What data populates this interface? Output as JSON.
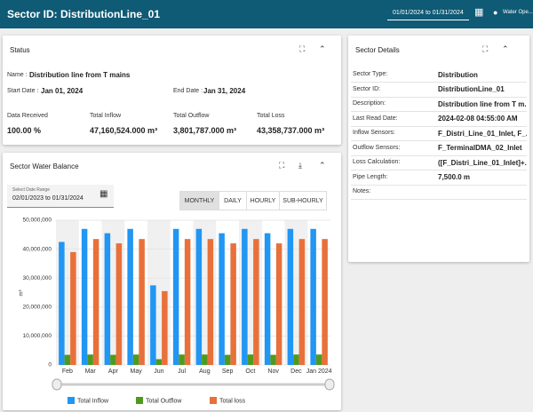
{
  "header": {
    "title": "Sector ID: DistributionLine_01",
    "date_range": "01/01/2024 to 01/31/2024",
    "user": "Water Ope..."
  },
  "status": {
    "title": "Status",
    "name_label": "Name :",
    "name": "Distribution line from T mains",
    "start_label": "Start Date :",
    "start": "Jan 01, 2024",
    "end_label": "End Date :",
    "end": "Jan 31, 2024",
    "metrics": [
      {
        "label": "Data Received",
        "value": "100.00 %"
      },
      {
        "label": "Total Inflow",
        "value": "47,160,524.000 m³"
      },
      {
        "label": "Total Outflow",
        "value": "3,801,787.000 m³"
      },
      {
        "label": "Total Loss",
        "value": "43,358,737.000 m³"
      }
    ]
  },
  "details": {
    "title": "Sector Details",
    "rows": [
      [
        "Sector Type:",
        "Distribution"
      ],
      [
        "Sector ID:",
        "DistributionLine_01"
      ],
      [
        "Description:",
        "Distribution line from T m..."
      ],
      [
        "Last Read Date:",
        "2024-02-08 04:55:00 AM"
      ],
      [
        "Inflow Sensors:",
        "F_Distri_Line_01_Inlet, F_..."
      ],
      [
        "Outflow Sensors:",
        "F_TerminalDMA_02_Inlet"
      ],
      [
        "Loss Calculation:",
        "([F_Distri_Line_01_Inlet]+..."
      ],
      [
        "Pipe Length:",
        "7,500.0 m"
      ],
      [
        "Notes:",
        ""
      ]
    ]
  },
  "balance": {
    "title": "Sector Water Balance",
    "date_field_label": "Select Date Range",
    "date_field_value": "02/01/2023 to 01/31/2024",
    "buttons": [
      "MONTHLY",
      "DAILY",
      "HOURLY",
      "SUB-HOURLY"
    ]
  },
  "chart_data": {
    "type": "bar",
    "y_label": "m³",
    "categories": [
      "Feb",
      "Mar",
      "Apr",
      "May",
      "Jun",
      "Jul",
      "Aug",
      "Sep",
      "Oct",
      "Nov",
      "Dec",
      "Jan 2024"
    ],
    "series": [
      {
        "name": "Total Inflow",
        "color": "#2196f3",
        "values": [
          42500000,
          47000000,
          45500000,
          47000000,
          27500000,
          47000000,
          47000000,
          45500000,
          47000000,
          45500000,
          47000000,
          47000000
        ]
      },
      {
        "name": "Total Outflow",
        "color": "#4f9a1e",
        "values": [
          3500000,
          3600000,
          3500000,
          3600000,
          2000000,
          3600000,
          3600000,
          3500000,
          3600000,
          3500000,
          3600000,
          3600000
        ]
      },
      {
        "name": "Total loss",
        "color": "#e8703a",
        "values": [
          39000000,
          43500000,
          42000000,
          43500000,
          25500000,
          43500000,
          43500000,
          42000000,
          43500000,
          42000000,
          43500000,
          43500000
        ]
      }
    ],
    "ylim": [
      0,
      50000000
    ],
    "yticks": [
      0,
      {
        "value": 10000000,
        "label": "10,000,000"
      },
      {
        "value": 20000000,
        "label": "20,000,000"
      },
      {
        "value": 30000000,
        "label": "30,000,000"
      },
      {
        "value": 40000000,
        "label": "40,000,000"
      },
      {
        "value": 50000000,
        "label": "50,000,000"
      }
    ],
    "grid": true
  }
}
